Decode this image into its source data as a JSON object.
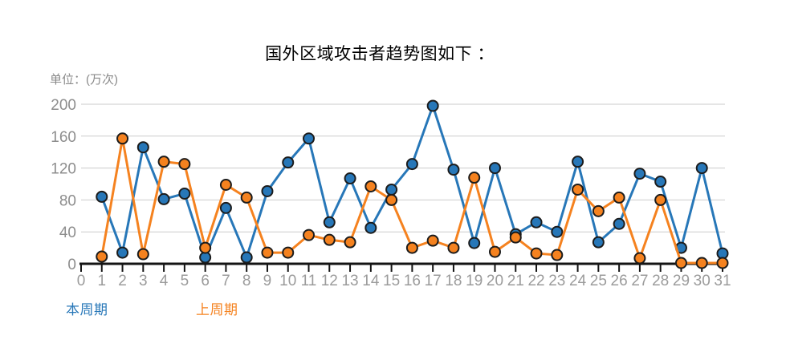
{
  "title": "国外区域攻击者趋势图如下 ：",
  "unit_label": "单位：(万次)",
  "colors": {
    "this_period": "#2777B8",
    "last_period": "#F5821F",
    "grid": "#CBCBCB",
    "axis": "#141414",
    "x_tick_label": "#9B9B9B",
    "y_tick_label": "#8D8D8D",
    "marker_outline": "#1C1C1C",
    "title_text": "#000000",
    "unit_text": "#8A8A8A"
  },
  "legend": {
    "items": [
      {
        "label": "本周期",
        "color": "#2777B8"
      },
      {
        "label": "上周期",
        "color": "#F5821F"
      }
    ]
  },
  "chart_data": {
    "type": "line",
    "title": "国外区域攻击者趋势图如下 ：",
    "ylabel": "单位：(万次)",
    "xlabel": "",
    "ylim": [
      0,
      200
    ],
    "yticks": [
      0,
      40,
      80,
      120,
      160,
      200
    ],
    "xticks": [
      0,
      1,
      2,
      3,
      4,
      5,
      6,
      7,
      8,
      9,
      10,
      11,
      12,
      13,
      14,
      15,
      16,
      17,
      18,
      19,
      20,
      21,
      22,
      23,
      24,
      25,
      26,
      27,
      28,
      29,
      30,
      31
    ],
    "grid": true,
    "legend_position": "bottom-left",
    "x": [
      1,
      2,
      3,
      4,
      5,
      6,
      7,
      8,
      9,
      10,
      11,
      12,
      13,
      14,
      15,
      16,
      17,
      18,
      19,
      20,
      21,
      22,
      23,
      24,
      25,
      26,
      27,
      28,
      29,
      30,
      31
    ],
    "series": [
      {
        "name": "本周期",
        "color": "#2777B8",
        "values": [
          84,
          14,
          146,
          81,
          88,
          8,
          70,
          8,
          91,
          127,
          157,
          52,
          107,
          45,
          93,
          125,
          198,
          118,
          26,
          120,
          37,
          52,
          40,
          128,
          27,
          50,
          113,
          103,
          20,
          120,
          13
        ]
      },
      {
        "name": "上周期",
        "color": "#F5821F",
        "values": [
          9,
          157,
          12,
          128,
          125,
          20,
          99,
          83,
          14,
          14,
          36,
          30,
          27,
          97,
          80,
          20,
          29,
          20,
          108,
          15,
          33,
          13,
          11,
          93,
          66,
          83,
          7,
          80,
          1,
          1,
          1
        ]
      }
    ]
  }
}
